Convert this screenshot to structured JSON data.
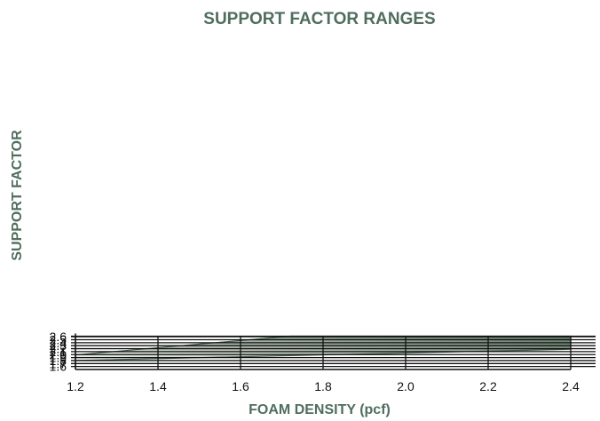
{
  "chart_data": {
    "type": "area",
    "title": "SUPPORT FACTOR RANGES",
    "xlabel": "FOAM DENSITY (pcf)",
    "ylabel": "SUPPORT FACTOR",
    "xlim": [
      1.2,
      2.4
    ],
    "ylim": [
      1.5,
      2.62
    ],
    "x_ticks": [
      "1.2",
      "1.4",
      "1.6",
      "1.8",
      "2.0",
      "2.2",
      "2.4"
    ],
    "y_ticks": [
      "1.6",
      "1.7",
      "1.8",
      "1.9",
      "2.0",
      "2.1",
      "2.2",
      "2.3",
      "2.4",
      "2.5",
      "2.6"
    ],
    "grid": true,
    "band": {
      "upper": [
        [
          1.2,
          1.99
        ],
        [
          1.72,
          2.62
        ],
        [
          2.4,
          2.62
        ]
      ],
      "lower": [
        [
          1.2,
          1.8
        ],
        [
          2.4,
          2.18
        ]
      ]
    },
    "colors": {
      "band_light": "#f4f5f1",
      "band_dark": "#5e7663",
      "band_edge": "#3f5d4a",
      "title": "#4f6e5e",
      "grid": "#111111"
    }
  }
}
